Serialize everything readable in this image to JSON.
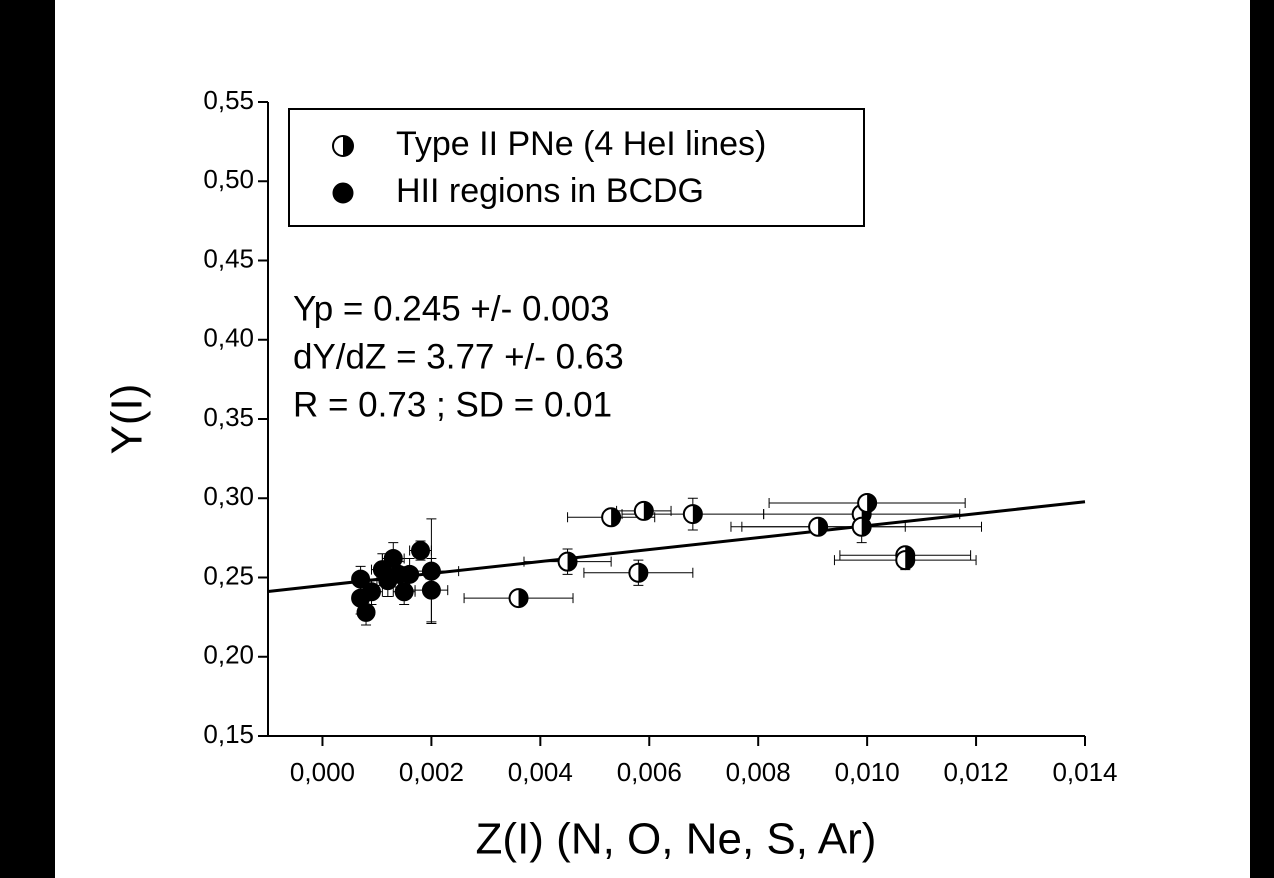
{
  "chart_data": {
    "type": "scatter",
    "xlabel": "Z(I) (N, O, Ne, S, Ar)",
    "ylabel": "Y(I)",
    "xlim": [
      -0.001,
      0.014
    ],
    "ylim": [
      0.15,
      0.55
    ],
    "xticks": [
      {
        "value": 0,
        "label": "0,000"
      },
      {
        "value": 0.002,
        "label": "0,002"
      },
      {
        "value": 0.004,
        "label": "0,004"
      },
      {
        "value": 0.006,
        "label": "0,006"
      },
      {
        "value": 0.008,
        "label": "0,008"
      },
      {
        "value": 0.01,
        "label": "0,010"
      },
      {
        "value": 0.012,
        "label": "0,012"
      },
      {
        "value": 0.014,
        "label": "0,014"
      }
    ],
    "yticks": [
      {
        "value": 0.15,
        "label": "0,15"
      },
      {
        "value": 0.2,
        "label": "0,20"
      },
      {
        "value": 0.25,
        "label": "0,25"
      },
      {
        "value": 0.3,
        "label": "0,30"
      },
      {
        "value": 0.35,
        "label": "0,35"
      },
      {
        "value": 0.4,
        "label": "0,40"
      },
      {
        "value": 0.45,
        "label": "0,45"
      },
      {
        "value": 0.5,
        "label": "0,50"
      },
      {
        "value": 0.55,
        "label": "0,55"
      }
    ],
    "annotations": [
      "Yp = 0.245 +/- 0.003",
      "dY/dZ = 3.77 +/- 0.63",
      "R = 0.73 ; SD = 0.01"
    ],
    "series": [
      {
        "name": "Type II PNe (4 HeI lines)",
        "marker": "half",
        "color": "#000000",
        "x": [
          0.0036,
          0.0045,
          0.0053,
          0.0058,
          0.0059,
          0.0068,
          0.0091,
          0.0099,
          0.0099,
          0.01,
          0.0107,
          0.0107
        ],
        "values": [
          0.237,
          0.26,
          0.288,
          0.253,
          0.292,
          0.29,
          0.282,
          0.29,
          0.282,
          0.297,
          0.264,
          0.261
        ],
        "xerr": [
          0.001,
          0.0008,
          0.0008,
          0.001,
          0.0005,
          0.0013,
          0.0016,
          0.0018,
          0.0022,
          0.0018,
          0.0012,
          0.0013
        ],
        "yerr": [
          0.003,
          0.008,
          0.004,
          0.008,
          0.004,
          0.01,
          0.004,
          0.005,
          0.01,
          0.005,
          0.004,
          0.006
        ]
      },
      {
        "name": "HII regions in BCDG",
        "marker": "filled",
        "color": "#000000",
        "x": [
          0.0007,
          0.0007,
          0.0008,
          0.0009,
          0.0011,
          0.0012,
          0.0013,
          0.0014,
          0.0015,
          0.0016,
          0.0018,
          0.002,
          0.002
        ],
        "values": [
          0.249,
          0.237,
          0.228,
          0.241,
          0.255,
          0.248,
          0.262,
          0.252,
          0.241,
          0.252,
          0.267,
          0.254,
          0.242
        ],
        "xerr": [
          0.0001,
          0.0001,
          0.0001,
          0.0002,
          0.0002,
          0.0002,
          0.0002,
          0.0002,
          0.0002,
          0.0003,
          0.0002,
          0.0005,
          0.0003
        ],
        "yerr": [
          0.008,
          0.01,
          0.008,
          0.008,
          0.01,
          0.01,
          0.01,
          0.008,
          0.008,
          0.01,
          0.006,
          0.033,
          0.02
        ]
      }
    ],
    "fit": {
      "x": [
        -0.001,
        0.014
      ],
      "values": [
        0.2412,
        0.2978
      ],
      "color": "#000000"
    }
  }
}
